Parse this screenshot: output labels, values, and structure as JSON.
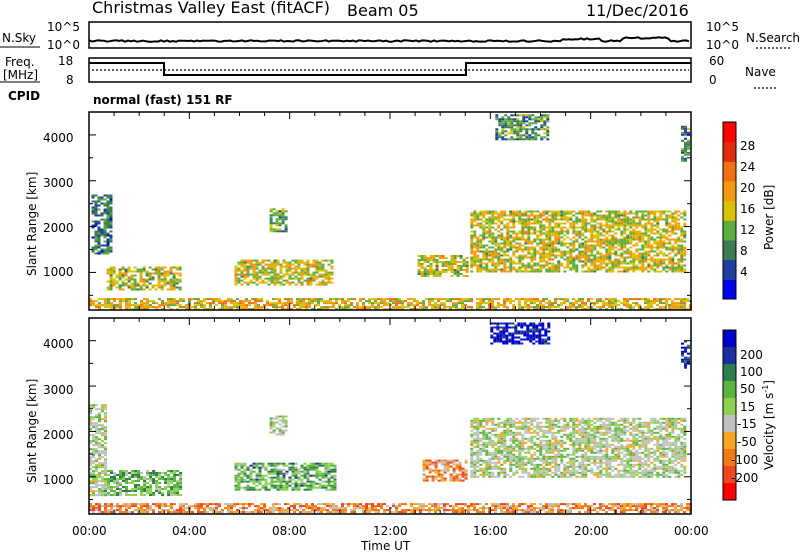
{
  "header": {
    "radar": "Christmas Valley East (fitACF)",
    "beam": "Beam 05",
    "date": "11/Dec/2016"
  },
  "side_labels": {
    "nsky": "N.Sky",
    "nsearch": "N.Search",
    "freq": "Freq.",
    "mhz": "[MHz]",
    "nave": "Nave",
    "cpid": "CPID",
    "nsky_hi": "10^5",
    "nsky_lo": "10^0",
    "freq_hi": "18",
    "freq_lo": "8",
    "nave_hi": "60",
    "nave_lo": "0"
  },
  "cpid_text": "normal (fast) 151 RF",
  "colors": {
    "scale_power": [
      "#0000ee",
      "#1f3f9e",
      "#3c7a52",
      "#5aaf3c",
      "#d9c300",
      "#f39a12",
      "#f07012",
      "#e02d10",
      "#ff0000"
    ],
    "scale_velocity": [
      "#ff0000",
      "#f0461e",
      "#f3781a",
      "#f7a623",
      "#c0c0c0",
      "#8cd250",
      "#59b53f",
      "#2f7f4e",
      "#1c2fa0",
      "#0000cd"
    ],
    "ground_scatter": "#c0c0c0"
  },
  "chart_data": [
    {
      "type": "heatmap",
      "name": "power",
      "ylabel": "Slant Range [km]",
      "xlabel": "Time UT",
      "xlim": [
        "00:00",
        "24:00"
      ],
      "ylim": [
        180,
        4500
      ],
      "x_ticks": [
        "00:00",
        "04:00",
        "08:00",
        "12:00",
        "16:00",
        "20:00",
        "00:00"
      ],
      "y_ticks": [
        1000,
        2000,
        3000,
        4000
      ],
      "colorbar": {
        "label": "Power [dB]",
        "ticks": [
          4,
          8,
          12,
          16,
          20,
          24,
          28
        ],
        "range": [
          0,
          30
        ]
      },
      "regions": [
        {
          "t0": 0.0,
          "t1": 24.0,
          "r0": 200,
          "r1": 440,
          "level": 0.55
        },
        {
          "t0": 0.7,
          "t1": 3.6,
          "r0": 620,
          "r1": 1130,
          "level": 0.45
        },
        {
          "t0": 0.1,
          "t1": 0.9,
          "r0": 1400,
          "r1": 2700,
          "level": 0.25
        },
        {
          "t0": 5.8,
          "t1": 9.7,
          "r0": 740,
          "r1": 1280,
          "level": 0.5
        },
        {
          "t0": 7.2,
          "t1": 7.8,
          "r0": 1900,
          "r1": 2400,
          "level": 0.35
        },
        {
          "t0": 13.1,
          "t1": 15.1,
          "r0": 930,
          "r1": 1380,
          "level": 0.5
        },
        {
          "t0": 15.2,
          "t1": 23.8,
          "r0": 1000,
          "r1": 2350,
          "level": 0.5
        },
        {
          "t0": 16.2,
          "t1": 18.3,
          "r0": 3920,
          "r1": 4450,
          "level": 0.3
        },
        {
          "t0": 23.6,
          "t1": 23.95,
          "r0": 3450,
          "r1": 4200,
          "level": 0.3
        }
      ]
    },
    {
      "type": "heatmap",
      "name": "velocity",
      "ylabel": "Slant Range [km]",
      "xlabel": "Time UT",
      "xlim": [
        "00:00",
        "24:00"
      ],
      "ylim": [
        180,
        4500
      ],
      "x_ticks": [
        "00:00",
        "04:00",
        "08:00",
        "12:00",
        "16:00",
        "20:00",
        "00:00"
      ],
      "y_ticks": [
        1000,
        2000,
        3000,
        4000
      ],
      "colorbar": {
        "label": "Velocity [m s-1]",
        "ticks": [
          200,
          100,
          50,
          15,
          -15,
          -50,
          -100,
          -200
        ]
      },
      "regions": [
        {
          "t0": 0.0,
          "t1": 24.0,
          "r0": 200,
          "r1": 420,
          "level": 0.3
        },
        {
          "t0": 0.6,
          "t1": 3.6,
          "r0": 610,
          "r1": 1150,
          "level": 0.62
        },
        {
          "t0": 0.0,
          "t1": 0.7,
          "r0": 600,
          "r1": 2600,
          "level": 0.5
        },
        {
          "t0": 5.8,
          "t1": 9.8,
          "r0": 720,
          "r1": 1310,
          "level": 0.65
        },
        {
          "t0": 7.2,
          "t1": 7.8,
          "r0": 1950,
          "r1": 2350,
          "level": 0.5
        },
        {
          "t0": 13.3,
          "t1": 15.0,
          "r0": 900,
          "r1": 1380,
          "level": 0.3
        },
        {
          "t0": 15.2,
          "t1": 23.8,
          "r0": 1000,
          "r1": 2300,
          "level": 0.5
        },
        {
          "t0": 16.0,
          "t1": 18.3,
          "r0": 3950,
          "r1": 4400,
          "level": 0.95
        },
        {
          "t0": 23.6,
          "t1": 23.95,
          "r0": 3400,
          "r1": 4000,
          "level": 0.95
        }
      ]
    }
  ],
  "tick_labels": {
    "y_1000": "1000",
    "y_2000": "2000",
    "y_3000": "3000",
    "y_4000": "4000",
    "x_0": "00:00",
    "x_1": "04:00",
    "x_2": "08:00",
    "x_3": "12:00",
    "x_4": "16:00",
    "x_5": "20:00",
    "x_6": "00:00",
    "xlabel": "Time UT",
    "ylabel": "Slant Range [km]",
    "power_label": "Power [dB]",
    "velocity_label": "Velocity [m s",
    "velocity_exp": "-1",
    "velocity_close": "]"
  },
  "colorbar_ticks": {
    "power": [
      "28",
      "24",
      "20",
      "16",
      "12",
      "8",
      "4"
    ],
    "velocity": [
      "200",
      "100",
      "50",
      "15",
      "-15",
      "-50",
      "-100",
      "-200"
    ]
  }
}
